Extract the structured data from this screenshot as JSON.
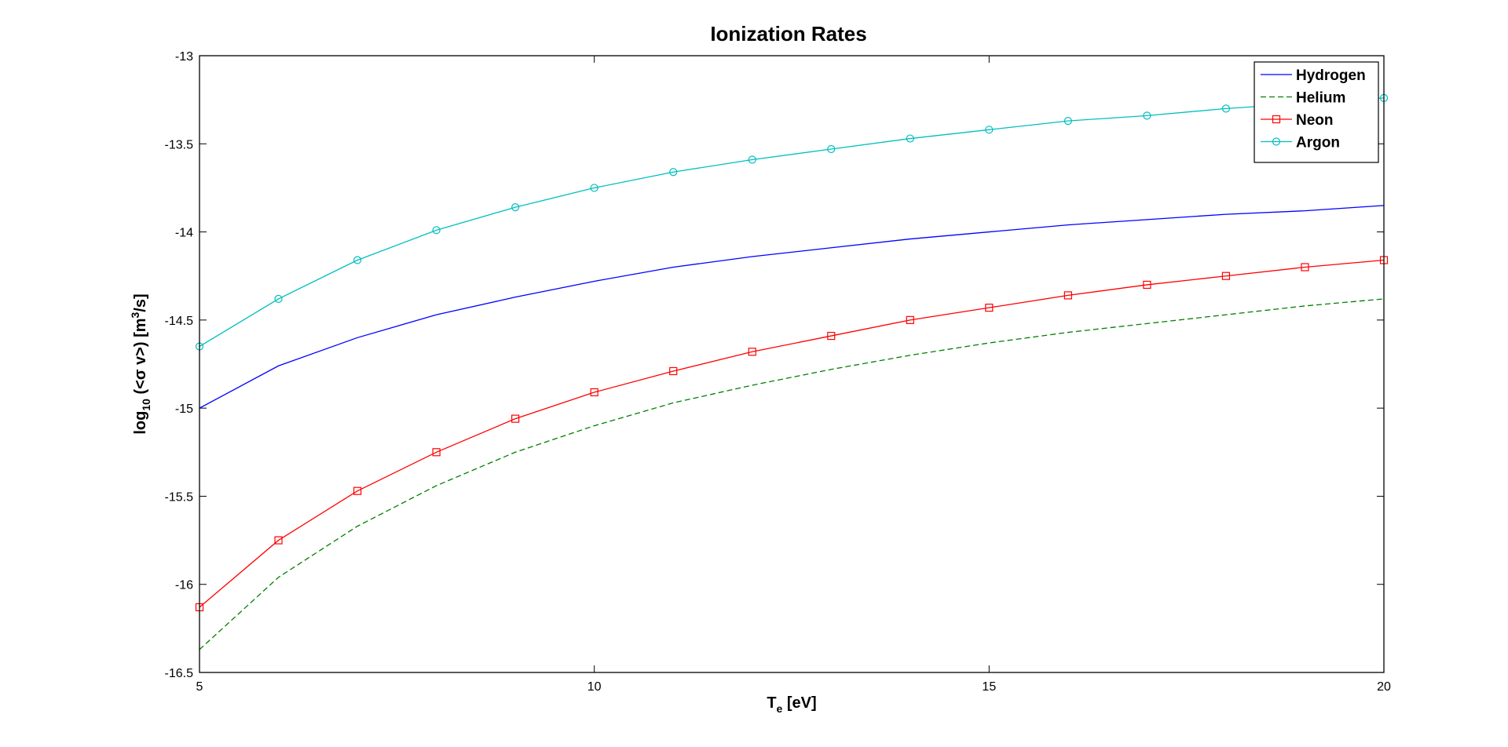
{
  "chart_data": {
    "type": "line",
    "title": "Ionization Rates",
    "xlabel": {
      "main": "T",
      "sub": "e",
      "rest": " [eV]"
    },
    "ylabel": {
      "pre": "log",
      "sub": "10",
      "mid": " (<σ v>) [m",
      "sup": "3",
      "post": "/s]"
    },
    "xlim": [
      5,
      20
    ],
    "ylim": [
      -16.5,
      -13
    ],
    "xticks": [
      5,
      10,
      15,
      20
    ],
    "yticks": [
      -16.5,
      -16,
      -15.5,
      -15,
      -14.5,
      -14,
      -13.5,
      -13
    ],
    "xtick_labels": [
      "5",
      "10",
      "15",
      "20"
    ],
    "ytick_labels": [
      "-16.5",
      "-16",
      "-15.5",
      "-15",
      "-14.5",
      "-14",
      "-13.5",
      "-13"
    ],
    "grid": false,
    "legend_position": "top-right",
    "x": [
      5,
      6,
      7,
      8,
      9,
      10,
      11,
      12,
      13,
      14,
      15,
      16,
      17,
      18,
      19,
      20
    ],
    "series": [
      {
        "name": "Hydrogen",
        "color": "#0000ff",
        "line": "solid",
        "marker": "none",
        "values": [
          -15.0,
          -14.76,
          -14.6,
          -14.47,
          -14.37,
          -14.28,
          -14.2,
          -14.14,
          -14.09,
          -14.04,
          -14.0,
          -13.96,
          -13.93,
          -13.9,
          -13.88,
          -13.85
        ]
      },
      {
        "name": "Helium",
        "color": "#008000",
        "line": "dashed",
        "marker": "none",
        "values": [
          -16.37,
          -15.96,
          -15.67,
          -15.44,
          -15.25,
          -15.1,
          -14.97,
          -14.87,
          -14.78,
          -14.7,
          -14.63,
          -14.57,
          -14.52,
          -14.47,
          -14.42,
          -14.38
        ]
      },
      {
        "name": "Neon",
        "color": "#ff0000",
        "line": "solid",
        "marker": "square",
        "values": [
          -16.13,
          -15.75,
          -15.47,
          -15.25,
          -15.06,
          -14.91,
          -14.79,
          -14.68,
          -14.59,
          -14.5,
          -14.43,
          -14.36,
          -14.3,
          -14.25,
          -14.2,
          -14.16
        ]
      },
      {
        "name": "Argon",
        "color": "#00bfbf",
        "line": "solid",
        "marker": "circle",
        "values": [
          -14.65,
          -14.38,
          -14.16,
          -13.99,
          -13.86,
          -13.75,
          -13.66,
          -13.59,
          -13.53,
          -13.47,
          -13.42,
          -13.37,
          -13.34,
          -13.3,
          -13.27,
          -13.24
        ]
      }
    ]
  }
}
